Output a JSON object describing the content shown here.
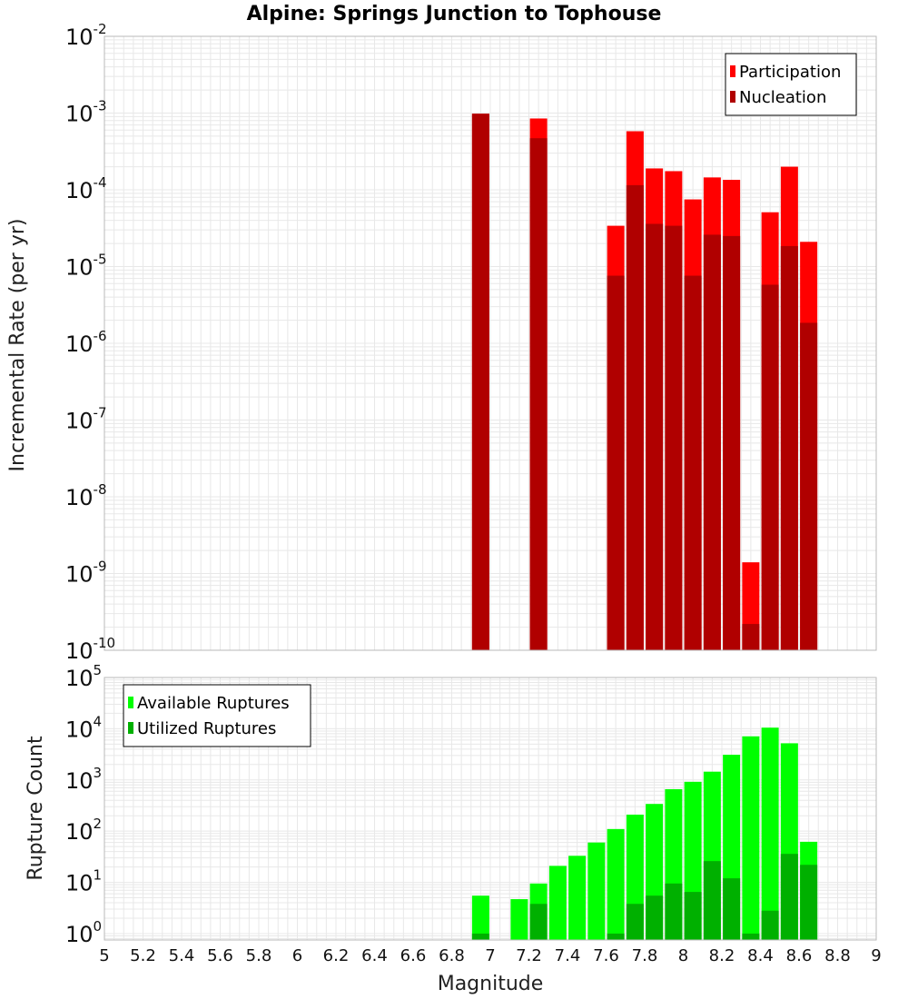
{
  "chart_data": [
    {
      "type": "bar",
      "title": "Alpine: Springs Junction to Tophouse",
      "xlabel": "Magnitude",
      "ylabel": "Incremental Rate (per yr)",
      "yscale": "log",
      "ylim": [
        1e-10,
        0.01
      ],
      "xlim": [
        5,
        9
      ],
      "legend_position": "top-right",
      "x": [
        6.95,
        7.25,
        7.65,
        7.75,
        7.85,
        7.95,
        8.05,
        8.15,
        8.25,
        8.35,
        8.45,
        8.55,
        8.65
      ],
      "series": [
        {
          "name": "Participation",
          "color": "#ff0000",
          "values": [
            0.00098,
            0.00085,
            3.4e-05,
            0.00058,
            0.00019,
            0.000175,
            7.5e-05,
            0.000145,
            0.000135,
            1.4e-09,
            5.1e-05,
            0.0002,
            2.1e-05
          ]
        },
        {
          "name": "Nucleation",
          "color": "#b00000",
          "values": [
            0.00098,
            0.00047,
            7.6e-06,
            0.000115,
            3.6e-05,
            3.4e-05,
            7.6e-06,
            2.6e-05,
            2.5e-05,
            2.2e-10,
            5.8e-06,
            1.85e-05,
            1.85e-06
          ]
        }
      ]
    },
    {
      "type": "bar",
      "xlabel": "Magnitude",
      "ylabel": "Rupture Count",
      "yscale": "log",
      "ylim": [
        0.75,
        100000
      ],
      "xlim": [
        5,
        9
      ],
      "legend_position": "top-left",
      "x": [
        6.95,
        7.15,
        7.25,
        7.35,
        7.45,
        7.55,
        7.65,
        7.75,
        7.85,
        7.95,
        8.05,
        8.15,
        8.25,
        8.35,
        8.45,
        8.55,
        8.65
      ],
      "series": [
        {
          "name": "Available Ruptures",
          "color": "#00ff00",
          "values": [
            5.5,
            4.7,
            9.5,
            21,
            33,
            60,
            110,
            210,
            340,
            660,
            920,
            1450,
            3100,
            7100,
            10500,
            5200,
            62
          ]
        },
        {
          "name": "Utilized Ruptures",
          "color": "#00b000",
          "values": [
            1,
            0,
            3.8,
            0,
            0,
            0,
            1,
            3.8,
            5.5,
            9.5,
            6.5,
            26,
            12,
            1,
            2.8,
            36,
            22
          ]
        }
      ]
    }
  ],
  "axes": {
    "x_ticks": [
      "5",
      "5.2",
      "5.4",
      "5.6",
      "5.8",
      "6",
      "6.2",
      "6.4",
      "6.6",
      "6.8",
      "7",
      "7.2",
      "7.4",
      "7.6",
      "7.8",
      "8",
      "8.2",
      "8.4",
      "8.6",
      "8.8",
      "9"
    ],
    "top_y_base": "10",
    "top_y_exponents": [
      "-2",
      "-3",
      "-4",
      "-5",
      "-6",
      "-7",
      "-8",
      "-9",
      "-10"
    ],
    "bottom_y_base": "10",
    "bottom_y_exponents": [
      "5",
      "4",
      "3",
      "2",
      "1",
      "0"
    ]
  },
  "colors": {
    "grid": "#e8e8e8",
    "frame": "#b8b8b8",
    "background": "#ffffff"
  }
}
